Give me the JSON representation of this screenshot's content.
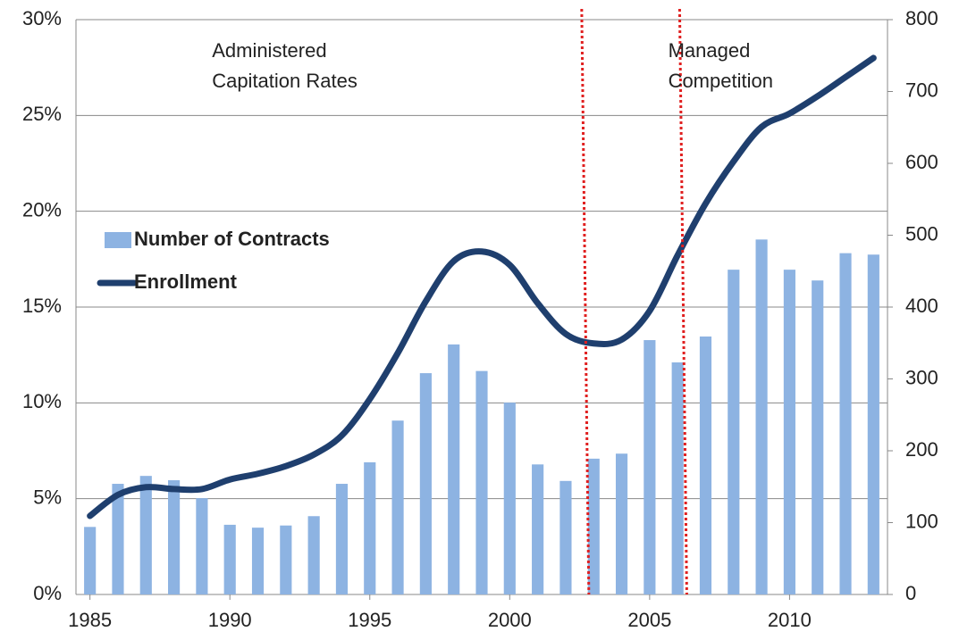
{
  "chart_data": {
    "type": "bar_line",
    "x": [
      1985,
      1986,
      1987,
      1988,
      1989,
      1990,
      1991,
      1992,
      1993,
      1994,
      1995,
      1996,
      1997,
      1998,
      1999,
      2000,
      2001,
      2002,
      2003,
      2004,
      2005,
      2006,
      2007,
      2008,
      2009,
      2010,
      2011,
      2012,
      2013
    ],
    "series": [
      {
        "name": "Number of Contracts",
        "type": "bar",
        "axis": "y2",
        "color": "#8db3e2",
        "values": [
          94,
          154,
          165,
          159,
          134,
          97,
          93,
          96,
          109,
          154,
          184,
          242,
          308,
          348,
          311,
          267,
          181,
          158,
          189,
          196,
          354,
          323,
          359,
          452,
          494,
          452,
          437,
          475,
          473
        ]
      },
      {
        "name": "Enrollment",
        "type": "line",
        "axis": "y",
        "color": "#1f3f6e",
        "values": [
          4.1,
          5.2,
          5.6,
          5.5,
          5.5,
          6.0,
          6.3,
          6.7,
          7.3,
          8.3,
          10.2,
          12.6,
          15.3,
          17.4,
          17.9,
          17.2,
          15.2,
          13.6,
          13.1,
          13.3,
          14.8,
          17.7,
          20.4,
          22.6,
          24.4,
          25.1,
          26.0,
          27.0,
          28.0
        ]
      }
    ],
    "xlim": [
      1984.5,
      2013.5
    ],
    "xticks": [
      1985,
      1990,
      1995,
      2000,
      2005,
      2010
    ],
    "ylim": [
      0,
      30
    ],
    "yticks": [
      {
        "value": 0,
        "label": "0%"
      },
      {
        "value": 5,
        "label": "5%"
      },
      {
        "value": 10,
        "label": "10%"
      },
      {
        "value": 15,
        "label": "15%"
      },
      {
        "value": 20,
        "label": "20%"
      },
      {
        "value": 25,
        "label": "25%"
      },
      {
        "value": 30,
        "label": "30%"
      }
    ],
    "y2lim": [
      0,
      800
    ],
    "y2ticks": [
      0,
      100,
      200,
      300,
      400,
      500,
      600,
      700,
      800
    ],
    "grid": true,
    "legend": "left",
    "vlines": [
      {
        "x": 2002.7,
        "color": "#e02020"
      },
      {
        "x": 2006.2,
        "color": "#e02020"
      }
    ],
    "annotations": [
      {
        "lines": [
          "Administered",
          "Capitation Rates"
        ],
        "x": 1990
      },
      {
        "lines": [
          "Managed",
          "Competition"
        ],
        "x": 2006.3
      }
    ]
  }
}
